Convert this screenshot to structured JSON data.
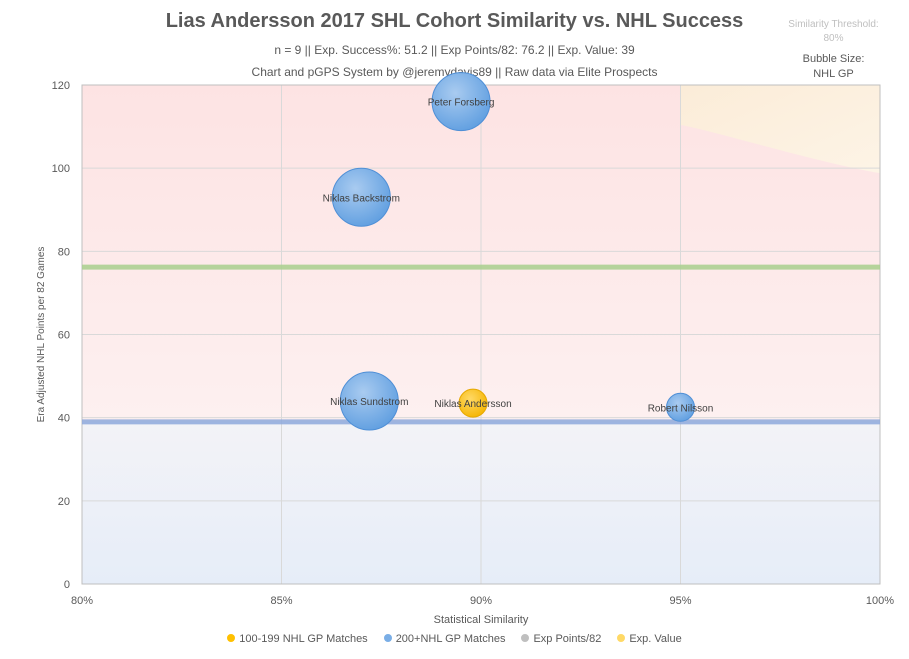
{
  "title": "Lias Andersson 2017 SHL Cohort Similarity vs. NHL Success",
  "subtitle1": "n = 9 || Exp. Success%: 51.2 || Exp Points/82: 76.2 || Exp. Value: 39",
  "subtitle2": "Chart and pGPS System by @jeremydavis89 || Raw data via Elite Prospects",
  "threshold_label": "Similarity Threshold:",
  "threshold_value": "80%",
  "bubble_size_label": "Bubble Size:",
  "bubble_size_value": "NHL GP",
  "colors": {
    "blue_bubble": "#7aaee6",
    "gold_bubble": "#ffc000",
    "exp_points_line": "#a9d08e",
    "exp_value_line": "#8faadc",
    "grid": "#d9d9d9"
  },
  "chart_data": {
    "type": "scatter",
    "xlabel": "Statistical Similarity",
    "ylabel": "Era Adjusted NHL Points per 82 Games",
    "xlim": [
      80,
      100
    ],
    "ylim": [
      0,
      120
    ],
    "x_ticks": [
      80,
      85,
      90,
      95,
      100
    ],
    "x_tick_labels": [
      "80%",
      "85%",
      "90%",
      "95%",
      "100%"
    ],
    "y_ticks": [
      0,
      20,
      40,
      60,
      80,
      100,
      120
    ],
    "y_tick_labels": [
      "0",
      "20",
      "40",
      "60",
      "80",
      "100",
      "120"
    ],
    "exp_points_82": 76.2,
    "exp_value": 39,
    "points": [
      {
        "name": "Peter Forsberg",
        "x": 89.5,
        "y": 116,
        "size": "large",
        "group": "200+"
      },
      {
        "name": "Niklas Backstrom",
        "x": 87.0,
        "y": 93,
        "size": "large",
        "group": "200+"
      },
      {
        "name": "Niklas Sundstrom",
        "x": 87.2,
        "y": 44,
        "size": "large",
        "group": "200+"
      },
      {
        "name": "Niklas Andersson",
        "x": 89.8,
        "y": 43.5,
        "size": "small",
        "group": "100-199"
      },
      {
        "name": "Robert Nilsson",
        "x": 95.0,
        "y": 42.5,
        "size": "small",
        "group": "200+"
      }
    ],
    "legend": [
      {
        "label": "100-199 NHL GP Matches",
        "color": "#ffc000"
      },
      {
        "label": "200+NHL GP Matches",
        "color": "#7aaee6"
      },
      {
        "label": "Exp Points/82",
        "color": "#bfbfbf"
      },
      {
        "label": "Exp. Value",
        "color": "#ffd966"
      }
    ]
  }
}
